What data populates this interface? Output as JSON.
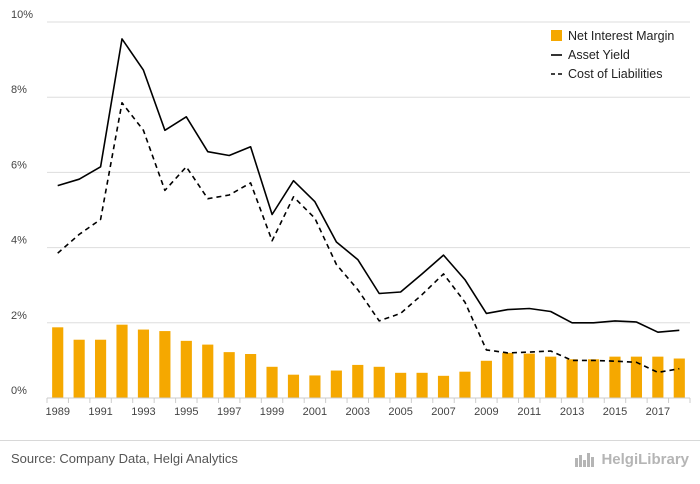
{
  "chart_data": {
    "type": "bar+line",
    "categories": [
      "1989",
      "1990",
      "1991",
      "1992",
      "1993",
      "1994",
      "1995",
      "1996",
      "1997",
      "1998",
      "1999",
      "2000",
      "2001",
      "2002",
      "2003",
      "2004",
      "2005",
      "2006",
      "2007",
      "2008",
      "2009",
      "2010",
      "2011",
      "2012",
      "2013",
      "2014",
      "2015",
      "2016",
      "2017",
      "2018"
    ],
    "x_tick_labels": [
      "1989",
      "1991",
      "1993",
      "1995",
      "1997",
      "1999",
      "2001",
      "2003",
      "2005",
      "2007",
      "2009",
      "2011",
      "2013",
      "2015",
      "2017"
    ],
    "y_tick_labels": [
      "0%",
      "2%",
      "4%",
      "6%",
      "8%",
      "10%"
    ],
    "ylim": [
      0,
      10
    ],
    "y_unit": "%",
    "grid": true,
    "legend_position": "top-right",
    "series": [
      {
        "name": "Net Interest Margin",
        "type": "bar",
        "color": "#f5a800",
        "values": [
          1.88,
          1.55,
          1.55,
          1.95,
          1.82,
          1.78,
          1.52,
          1.42,
          1.22,
          1.17,
          0.83,
          0.62,
          0.6,
          0.73,
          0.88,
          0.83,
          0.67,
          0.67,
          0.59,
          0.7,
          0.99,
          1.2,
          1.18,
          1.1,
          1.03,
          1.03,
          1.1,
          1.1,
          1.1,
          1.05
        ]
      },
      {
        "name": "Asset Yield",
        "type": "line",
        "style": "solid",
        "color": "#000000",
        "values": [
          5.65,
          5.82,
          6.15,
          9.55,
          8.72,
          7.12,
          7.48,
          6.55,
          6.45,
          6.68,
          4.88,
          5.78,
          5.22,
          4.15,
          3.68,
          2.78,
          2.82,
          3.3,
          3.8,
          3.15,
          2.25,
          2.35,
          2.38,
          2.3,
          2.0,
          2.0,
          2.05,
          2.02,
          1.75,
          1.8
        ]
      },
      {
        "name": "Cost of Liabilities",
        "type": "line",
        "style": "dashed",
        "color": "#000000",
        "values": [
          3.85,
          4.35,
          4.75,
          7.85,
          7.12,
          5.52,
          6.15,
          5.3,
          5.4,
          5.72,
          4.18,
          5.35,
          4.78,
          3.55,
          2.88,
          2.05,
          2.25,
          2.75,
          3.3,
          2.55,
          1.28,
          1.2,
          1.22,
          1.25,
          1.0,
          1.0,
          0.98,
          0.95,
          0.68,
          0.78
        ]
      }
    ]
  },
  "footer": {
    "source": "Source: Company Data, Helgi Analytics",
    "brand": "HelgiLibrary"
  },
  "colors": {
    "bar": "#f5a800",
    "line": "#000000",
    "grid": "#dddddd",
    "axis": "#cccccc"
  }
}
